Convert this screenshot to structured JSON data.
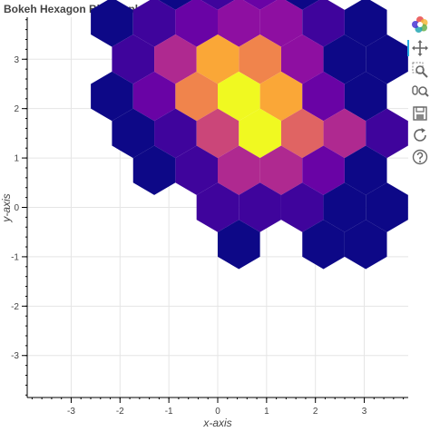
{
  "chart_data": {
    "type": "hexbin",
    "title": "Bokeh Hexagon Bin Graph",
    "xlabel": "x-axis",
    "ylabel": "y-axis",
    "xlim": [
      -3.9,
      3.9
    ],
    "ylim": [
      -3.85,
      3.85
    ],
    "x_ticks": [
      -3,
      -2,
      -1,
      0,
      1,
      2,
      3
    ],
    "y_ticks": [
      -3,
      -2,
      -1,
      0,
      1,
      2,
      3
    ],
    "grid": true,
    "hex_size": 0.5,
    "orientation": "pointytop",
    "palette": "Plasma256",
    "max_count": 10,
    "bins": [
      {
        "q": 3,
        "r": -7,
        "count": 0
      },
      {
        "q": 2,
        "r": -6,
        "count": 0
      },
      {
        "q": 3,
        "r": -6,
        "count": 1
      },
      {
        "q": 4,
        "r": -6,
        "count": 2
      },
      {
        "q": 5,
        "r": -6,
        "count": 0
      },
      {
        "q": 0,
        "r": -5,
        "count": 0
      },
      {
        "q": 1,
        "r": -5,
        "count": 1
      },
      {
        "q": 2,
        "r": -5,
        "count": 2
      },
      {
        "q": 3,
        "r": -5,
        "count": 3
      },
      {
        "q": 4,
        "r": -5,
        "count": 3
      },
      {
        "q": 5,
        "r": -5,
        "count": 1
      },
      {
        "q": 6,
        "r": -5,
        "count": 0
      },
      {
        "q": 0,
        "r": -4,
        "count": 1
      },
      {
        "q": 1,
        "r": -4,
        "count": 4
      },
      {
        "q": 2,
        "r": -4,
        "count": 8
      },
      {
        "q": 3,
        "r": -4,
        "count": 7
      },
      {
        "q": 4,
        "r": -4,
        "count": 3
      },
      {
        "q": 5,
        "r": -4,
        "count": 0
      },
      {
        "q": 6,
        "r": -4,
        "count": 0
      },
      {
        "q": -1,
        "r": -3,
        "count": 0
      },
      {
        "q": 0,
        "r": -3,
        "count": 2
      },
      {
        "q": 1,
        "r": -3,
        "count": 7
      },
      {
        "q": 2,
        "r": -3,
        "count": 10
      },
      {
        "q": 3,
        "r": -3,
        "count": 8
      },
      {
        "q": 4,
        "r": -3,
        "count": 2
      },
      {
        "q": 5,
        "r": -3,
        "count": 0
      },
      {
        "q": -1,
        "r": -2,
        "count": 0
      },
      {
        "q": 0,
        "r": -2,
        "count": 1
      },
      {
        "q": 1,
        "r": -2,
        "count": 5
      },
      {
        "q": 2,
        "r": -2,
        "count": 10
      },
      {
        "q": 3,
        "r": -2,
        "count": 6
      },
      {
        "q": 4,
        "r": -2,
        "count": 4
      },
      {
        "q": 5,
        "r": -2,
        "count": 1
      },
      {
        "q": -1,
        "r": -1,
        "count": 0
      },
      {
        "q": 0,
        "r": -1,
        "count": 1
      },
      {
        "q": 1,
        "r": -1,
        "count": 4
      },
      {
        "q": 2,
        "r": -1,
        "count": 4
      },
      {
        "q": 3,
        "r": -1,
        "count": 2
      },
      {
        "q": 4,
        "r": -1,
        "count": 0
      },
      {
        "q": 0,
        "r": 0,
        "count": 1
      },
      {
        "q": 1,
        "r": 0,
        "count": 1
      },
      {
        "q": 2,
        "r": 0,
        "count": 1
      },
      {
        "q": 3,
        "r": 0,
        "count": 0
      },
      {
        "q": 4,
        "r": 0,
        "count": 0
      },
      {
        "q": 0,
        "r": 1,
        "count": 0
      },
      {
        "q": 2,
        "r": 1,
        "count": 0
      },
      {
        "q": 3,
        "r": 1,
        "count": 0
      }
    ]
  },
  "toolbar": {
    "active_color": "#26aae1",
    "tools": [
      {
        "name": "bokeh-logo-icon",
        "interactable": true
      },
      {
        "name": "pan-icon",
        "interactable": true
      },
      {
        "name": "box-zoom-icon",
        "interactable": true
      },
      {
        "name": "wheel-zoom-icon",
        "interactable": true
      },
      {
        "name": "save-icon",
        "interactable": true
      },
      {
        "name": "reset-icon",
        "interactable": true
      },
      {
        "name": "help-icon",
        "interactable": true
      }
    ]
  }
}
